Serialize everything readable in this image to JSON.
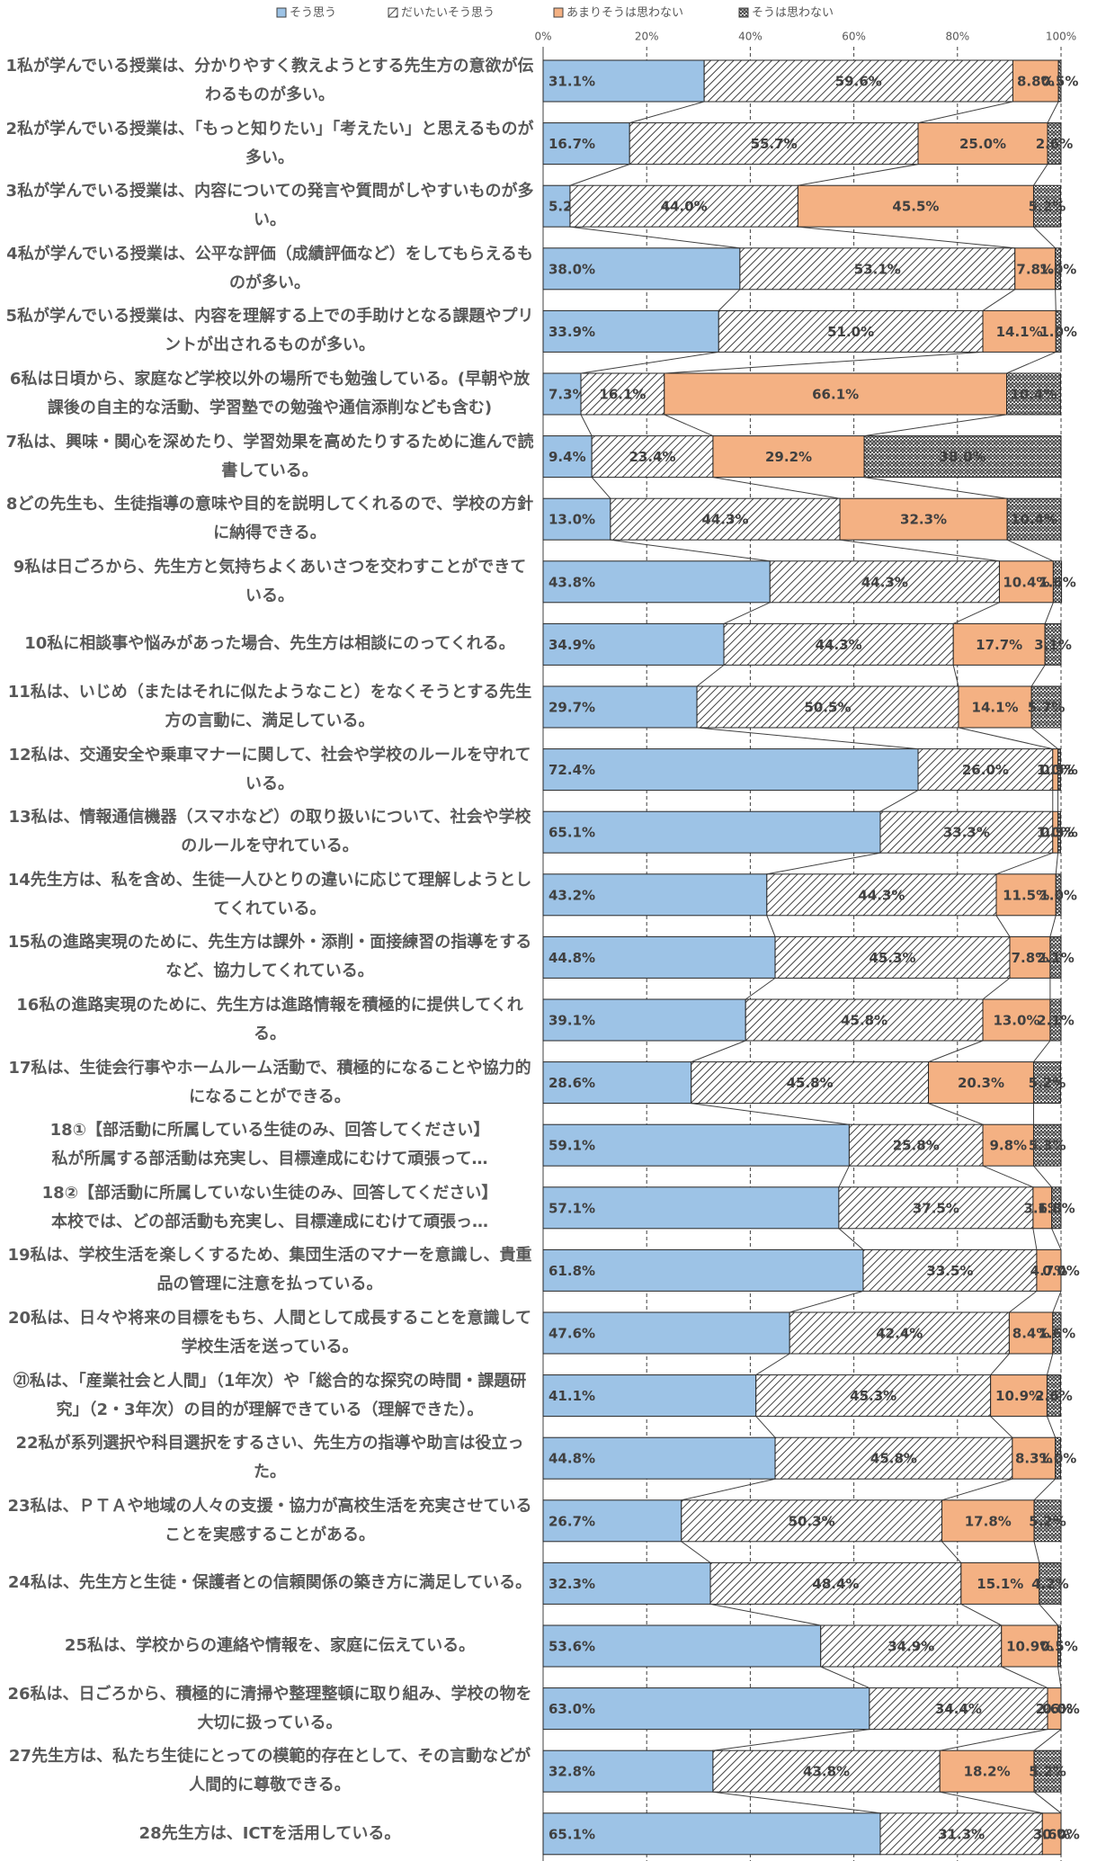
{
  "chart_data": {
    "type": "stacked_barh",
    "categories": [
      "1私が学んでいる授業は、分かりやすく教えようとする先生方の意欲が伝わるものが多い。",
      "2私が学んでいる授業は、「もっと知りたい」「考えたい」と思えるものが多い。",
      "3私が学んでいる授業は、内容についての発言や質問がしやすいものが多い。",
      "4私が学んでいる授業は、公平な評価（成績評価など）をしてもらえるものが多い。",
      "5私が学んでいる授業は、内容を理解する上での手助けとなる課題やプリントが出されるものが多い。",
      "6私は日頃から、家庭など学校以外の場所でも勉強している。(早朝や放課後の自主的な活動、学習塾での勉強や通信添削なども含む)",
      "7私は、興味・関心を深めたり、学習効果を高めたりするために進んで読書している。",
      "8どの先生も、生徒指導の意味や目的を説明してくれるので、学校の方針に納得できる。",
      "9私は日ごろから、先生方と気持ちよくあいさつを交わすことができている。",
      "10私に相談事や悩みがあった場合、先生方は相談にのってくれる。",
      "11私は、いじめ（またはそれに似たようなこと）をなくそうとする先生方の言動に、満足している。",
      "12私は、交通安全や乗車マナーに関して、社会や学校のルールを守れている。",
      "13私は、情報通信機器（スマホなど）の取り扱いについて、社会や学校のルールを守れている。",
      "14先生方は、私を含め、生徒一人ひとりの違いに応じて理解しようとしてくれている。",
      "15私の進路実現のために、先生方は課外・添削・面接練習の指導をするなど、協力してくれている。",
      "16私の進路実現のために、先生方は進路情報を積極的に提供してくれる。",
      "17私は、生徒会行事やホームルーム活動で、積極的になることや協力的になることができる。",
      "18①【部活動に所属している生徒のみ、回答してください】\n私が所属する部活動は充実し、目標達成にむけて頑張って…",
      "18②【部活動に所属していない生徒のみ、回答してください】\n本校では、どの部活動も充実し、目標達成にむけて頑張っ…",
      "19私は、学校生活を楽しくするため、集団生活のマナーを意識し、貴重品の管理に注意を払っている。",
      "20私は、日々や将来の目標をもち、人間として成長することを意識して学校生活を送っている。",
      "㉑私は、「産業社会と人間」（1年次）や「総合的な探究の時間・課題研究」（2・3年次）の目的が理解できている（理解できた）。",
      "22私が系列選択や科目選択をするさい、先生方の指導や助言は役立った。",
      "23私は、ＰＴＡや地域の人々の支援・協力が高校生活を充実させていることを実感することがある。",
      "24私は、先生方と生徒・保護者との信頼関係の築き方に満足している。",
      "25私は、学校からの連絡や情報を、家庭に伝えている。",
      "26私は、日ごろから、積極的に清掃や整理整頓に取り組み、学校の物を大切に扱っている。",
      "27先生方は、私たち生徒にとっての模範的存在として、その言動などが人間的に尊敬できる。",
      "28先生方は、ICTを活用している。"
    ],
    "series": [
      {
        "name": "そう思う",
        "color": "#9dc3e6",
        "pattern": "solid",
        "values": [
          31.1,
          16.7,
          5.2,
          38.0,
          33.9,
          7.3,
          9.4,
          13.0,
          43.8,
          34.9,
          29.7,
          72.4,
          65.1,
          43.2,
          44.8,
          39.1,
          28.6,
          59.1,
          57.1,
          61.8,
          47.6,
          41.1,
          44.8,
          26.7,
          32.3,
          53.6,
          63.0,
          32.8,
          65.1
        ],
        "value_labels": [
          "31.1%",
          "16.7%",
          "5.2%",
          "38.0%",
          "33.9%",
          "7.3%",
          "9.4%",
          "13.0%",
          "43.8%",
          "34.9%",
          "29.7%",
          "72.4%",
          "65.1%",
          "43.2%",
          "44.8%",
          "39.1%",
          "28.6%",
          "59.1%",
          "57.1%",
          "61.8%",
          "47.6%",
          "41.1%",
          "44.8%",
          "26.7%",
          "32.3%",
          "53.6%",
          "63.0%",
          "32.8%",
          "65.1%"
        ]
      },
      {
        "name": "だいたいそう思う",
        "color": "#404040",
        "pattern": "diagonal",
        "values": [
          59.6,
          55.7,
          44.0,
          53.1,
          51.0,
          16.1,
          23.4,
          44.3,
          44.3,
          44.3,
          50.5,
          26.0,
          33.3,
          44.3,
          45.3,
          45.8,
          45.8,
          25.8,
          37.5,
          33.5,
          42.4,
          45.3,
          45.8,
          50.3,
          48.4,
          34.9,
          34.4,
          43.8,
          31.3
        ],
        "value_labels": [
          "59.6%",
          "55.7%",
          "44.0%",
          "53.1%",
          "51.0%",
          "16.1%",
          "23.4%",
          "44.3%",
          "44.3%",
          "44.3%",
          "50.5%",
          "26.0%",
          "33.3%",
          "44.3%",
          "45.3%",
          "45.8%",
          "45.8%",
          "25.8%",
          "37.5%",
          "33.5%",
          "42.4%",
          "45.3%",
          "45.8%",
          "50.3%",
          "48.4%",
          "34.9%",
          "34.4%",
          "43.8%",
          "31.3%"
        ]
      },
      {
        "name": "あまりそうは思わない",
        "color": "#f4b183",
        "pattern": "solid",
        "values": [
          8.8,
          25.0,
          45.5,
          7.8,
          14.1,
          66.1,
          29.2,
          32.3,
          10.4,
          17.7,
          14.1,
          1.0,
          1.0,
          11.5,
          7.8,
          13.0,
          20.3,
          9.8,
          3.6,
          4.7,
          8.4,
          10.9,
          8.3,
          17.8,
          15.1,
          10.9,
          2.6,
          18.2,
          3.6
        ],
        "value_labels": [
          "8.8%",
          "25.0%",
          "45.5%",
          "7.8%",
          "14.1%",
          "66.1%",
          "29.2%",
          "32.3%",
          "10.4%",
          "17.7%",
          "14.1%",
          "1.0%",
          "1.0%",
          "11.5%",
          "7.8%",
          "13.0%",
          "20.3%",
          "9.8%",
          "3.6%",
          "4.7%",
          "8.4%",
          "10.9%",
          "8.3%",
          "17.8%",
          "15.1%",
          "10.9%",
          "2.6%",
          "18.2%",
          "3.6%"
        ]
      },
      {
        "name": "そうは思わない",
        "color": "#404040",
        "pattern": "crosshatch",
        "values": [
          0.5,
          2.6,
          5.2,
          1.0,
          1.0,
          10.4,
          38.0,
          10.4,
          1.6,
          3.1,
          5.7,
          0.5,
          0.5,
          1.0,
          2.1,
          2.1,
          5.2,
          5.3,
          1.8,
          0.0,
          1.6,
          2.6,
          1.0,
          5.2,
          4.2,
          0.5,
          0.0,
          5.2,
          0.0
        ],
        "value_labels": [
          "0.5%",
          "2.6%",
          "5.2%",
          "1.0%",
          "1.0%",
          "10.4%",
          "38.0%",
          "10.4%",
          "1.6%",
          "3.1%",
          "5.7%",
          "0.5%",
          "0.5%",
          "1.0%",
          "2.1%",
          "2.1%",
          "5.2%",
          "5.3%",
          "1.8%",
          "0.0%",
          "1.6%",
          "2.6%",
          "1.0%",
          "5.2%",
          "4.2%",
          "0.5%",
          "0.0%",
          "5.2%",
          "0.0%"
        ]
      }
    ],
    "xlim": [
      0,
      100
    ],
    "xticks": [
      {
        "value": 0,
        "label": "0%"
      },
      {
        "value": 20,
        "label": "20%"
      },
      {
        "value": 40,
        "label": "40%"
      },
      {
        "value": 60,
        "label": "60%"
      },
      {
        "value": 80,
        "label": "80%"
      },
      {
        "value": 100,
        "label": "100%"
      }
    ],
    "grid": true,
    "legend": "top"
  }
}
